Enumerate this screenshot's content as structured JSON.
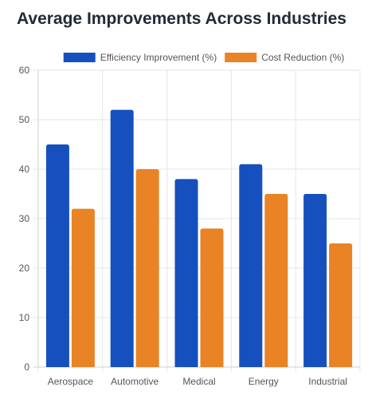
{
  "chart_data": {
    "type": "bar",
    "title": "Average Improvements Across Industries",
    "categories": [
      "Aerospace",
      "Automotive",
      "Medical",
      "Energy",
      "Industrial"
    ],
    "series": [
      {
        "name": "Efficiency Improvement (%)",
        "values": [
          45,
          52,
          38,
          41,
          35
        ],
        "color": "#1550be"
      },
      {
        "name": "Cost Reduction (%)",
        "values": [
          32,
          40,
          28,
          35,
          25
        ],
        "color": "#e98325"
      }
    ],
    "ylim": [
      0,
      60
    ],
    "yticks": [
      0,
      10,
      20,
      30,
      40,
      50,
      60
    ],
    "grid": true,
    "legend_position": "top-center"
  }
}
